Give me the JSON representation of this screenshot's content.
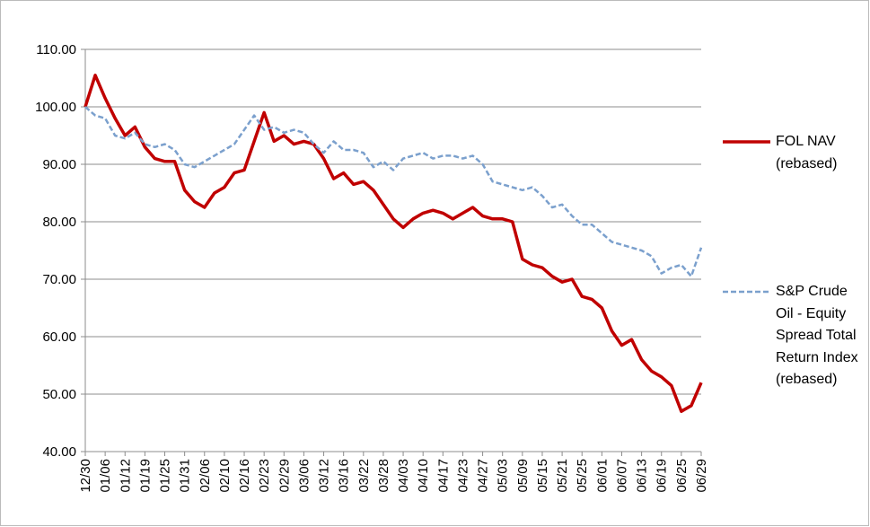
{
  "chart_data": {
    "type": "line",
    "categories": [
      "12/30",
      null,
      "01/06",
      null,
      "01/12",
      null,
      "01/19",
      null,
      "01/25",
      null,
      "01/31",
      null,
      "02/06",
      null,
      "02/10",
      null,
      "02/16",
      null,
      "02/23",
      null,
      "02/29",
      null,
      "03/06",
      null,
      "03/12",
      null,
      "03/16",
      null,
      "03/22",
      null,
      "03/28",
      null,
      "04/03",
      null,
      "04/10",
      null,
      "04/17",
      null,
      "04/23",
      null,
      "04/27",
      null,
      "05/03",
      null,
      "05/09",
      null,
      "05/15",
      null,
      "05/21",
      null,
      "05/25",
      null,
      "06/01",
      null,
      "06/07",
      null,
      "06/13",
      null,
      "06/19",
      null,
      "06/25",
      null,
      "06/29"
    ],
    "series": [
      {
        "name": "FOL NAV (rebased)",
        "color": "#c00000",
        "dash": false,
        "values": [
          100,
          105.5,
          101.5,
          98,
          95,
          96.5,
          93,
          91,
          90.5,
          90.5,
          85.5,
          83.5,
          82.5,
          85,
          86,
          88.5,
          89,
          94,
          99,
          94,
          95,
          93.5,
          94,
          93.5,
          91,
          87.5,
          88.5,
          86.5,
          87,
          85.5,
          83,
          80.5,
          79,
          80.5,
          81.5,
          82,
          81.5,
          80.5,
          81.5,
          82.5,
          81,
          80.5,
          80.5,
          80,
          73.5,
          72.5,
          72,
          70.5,
          69.5,
          70,
          67,
          66.5,
          65,
          61,
          58.5,
          59.5,
          56,
          54,
          53,
          51.5,
          47,
          48,
          52
        ]
      },
      {
        "name": "S&P Crude Oil - Equity Spread Total Return Index (rebased)",
        "color": "#7ba0cd",
        "dash": true,
        "values": [
          100,
          98.5,
          98,
          95,
          94.5,
          95.5,
          93.5,
          93,
          93.5,
          92.5,
          90,
          89.5,
          90.5,
          91.5,
          92.5,
          93.5,
          96,
          98.5,
          96,
          96.5,
          95.5,
          96,
          95.5,
          93.5,
          92,
          94,
          92.5,
          92.5,
          92,
          89.5,
          90.5,
          89,
          91,
          91.5,
          92,
          91,
          91.5,
          91.5,
          91,
          91.5,
          90,
          87,
          86.5,
          86,
          85.5,
          86,
          84.5,
          82.5,
          83,
          81,
          79.5,
          79.5,
          78,
          76.5,
          76,
          75.5,
          75,
          74,
          71,
          72,
          72.5,
          70.5,
          75.5
        ]
      }
    ],
    "ylim": [
      40,
      110
    ],
    "yticks": [
      {
        "value": 40,
        "label": "40.00"
      },
      {
        "value": 50,
        "label": "50.00"
      },
      {
        "value": 60,
        "label": "60.00"
      },
      {
        "value": 70,
        "label": "70.00"
      },
      {
        "value": 80,
        "label": "80.00"
      },
      {
        "value": 90,
        "label": "90.00"
      },
      {
        "value": 100,
        "label": "100.00"
      },
      {
        "value": 110,
        "label": "110.00"
      }
    ],
    "grid": true,
    "legend": "right"
  }
}
